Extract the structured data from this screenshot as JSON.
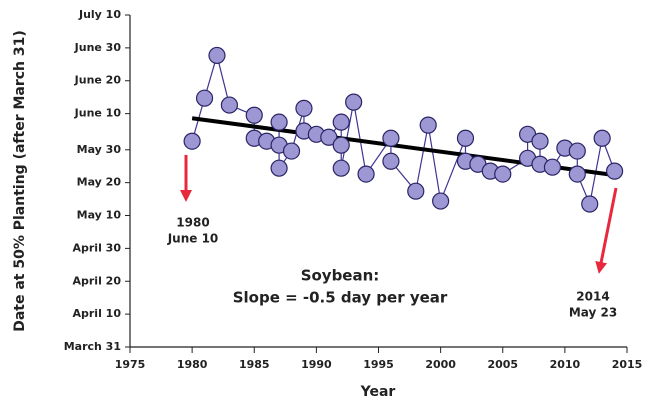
{
  "chart_data": {
    "type": "scatter",
    "y_label": "Date at 50% Planting (after March 31)",
    "x_label": "Year",
    "xlim": [
      1975,
      2015
    ],
    "xticks": [
      1975,
      1980,
      1985,
      1990,
      1995,
      2000,
      2005,
      2010,
      2015
    ],
    "ylim": [
      0,
      101
    ],
    "yticks": [
      {
        "value": 0,
        "label": "March 31"
      },
      {
        "value": 10,
        "label": "April 10"
      },
      {
        "value": 20,
        "label": "April 20"
      },
      {
        "value": 30,
        "label": "April 30"
      },
      {
        "value": 40,
        "label": "May 10"
      },
      {
        "value": 50,
        "label": "May 20"
      },
      {
        "value": 60,
        "label": "May 30"
      },
      {
        "value": 71,
        "label": "June 10"
      },
      {
        "value": 81,
        "label": "June 20"
      },
      {
        "value": 91,
        "label": "June 30"
      },
      {
        "value": 101,
        "label": "July 10"
      }
    ],
    "x": [
      1980,
      1981,
      1982,
      1983,
      1985,
      1985,
      1986,
      1987,
      1987,
      1987,
      1988,
      1989,
      1989,
      1990,
      1991,
      1992,
      1992,
      1992,
      1993,
      1994,
      1996,
      1996,
      1998,
      1999,
      2000,
      2002,
      2002,
      2003,
      2004,
      2005,
      2007,
      2007,
      2008,
      2008,
      2009,
      2010,
      2011,
      2011,
      2012,
      2013,
      2014
    ],
    "values": [
      62.6,
      75.7,
      88.7,
      73.6,
      70.5,
      63.5,
      62.6,
      61.4,
      68.4,
      54.4,
      59.6,
      72.6,
      65.7,
      64.7,
      63.8,
      68.4,
      61.4,
      54.4,
      74.5,
      52.6,
      63.5,
      56.5,
      47.4,
      67.5,
      44.4,
      63.5,
      56.5,
      55.6,
      53.5,
      52.6,
      57.4,
      64.7,
      62.6,
      55.6,
      54.7,
      60.5,
      59.6,
      52.6,
      43.5,
      63.5,
      53.5
    ],
    "color": "#9d97d4",
    "line_color": "#3f3593",
    "trendline": {
      "x": [
        1980,
        2014
      ],
      "values": [
        69.6,
        52.3
      ],
      "color": "#000000"
    },
    "annotations": [
      {
        "lines": [
          "1980",
          "June 10"
        ]
      },
      {
        "lines": [
          "2014",
          "May 23"
        ]
      },
      {
        "lines": [
          "Soybean:",
          "Slope = -0.5 day per year"
        ]
      }
    ]
  }
}
